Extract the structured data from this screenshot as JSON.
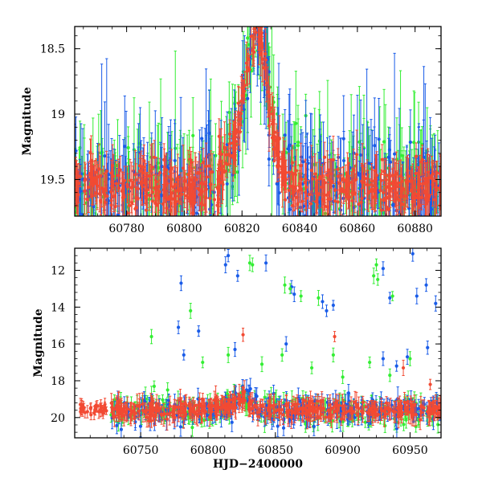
{
  "chart_data": [
    {
      "type": "scatter",
      "panel": "top",
      "title": "",
      "xlabel": "",
      "ylabel": "Magnitude",
      "xlim": [
        60762,
        60889
      ],
      "ylim": [
        19.78,
        18.33
      ],
      "y_inverted": true,
      "xticks": [
        60780,
        60800,
        60820,
        60840,
        60860,
        60880
      ],
      "xtick_labels": [
        "60780",
        "60800",
        "60820",
        "60840",
        "60860",
        "60880"
      ],
      "yticks": [
        18.5,
        19,
        19.5
      ],
      "ytick_labels": [
        "18.5",
        "19",
        "19.5"
      ],
      "series": [
        {
          "name": "green",
          "color": "#33ee33"
        },
        {
          "name": "blue",
          "color": "#1a5ce8"
        },
        {
          "name": "red",
          "color": "#f24a33"
        }
      ],
      "baseline_magnitude": 19.55,
      "peak": {
        "x": 60825,
        "y": 18.62
      }
    },
    {
      "type": "scatter",
      "panel": "bottom",
      "title": "",
      "xlabel": "HJD−2400000",
      "ylabel": "Magnitude",
      "xlim": [
        60701,
        60973
      ],
      "ylim": [
        21.1,
        10.8
      ],
      "y_inverted": true,
      "xticks": [
        60750,
        60800,
        60850,
        60900,
        60950
      ],
      "xtick_labels": [
        "60750",
        "60800",
        "60850",
        "60900",
        "60950"
      ],
      "yticks": [
        12,
        14,
        16,
        18,
        20
      ],
      "ytick_labels": [
        "12",
        "14",
        "16",
        "18",
        "20"
      ],
      "series": [
        {
          "name": "green",
          "color": "#33ee33"
        },
        {
          "name": "blue",
          "color": "#1a5ce8"
        },
        {
          "name": "red",
          "color": "#f24a33"
        }
      ],
      "baseline_magnitude": 19.6,
      "outliers": {
        "blue": [
          [
            60780,
            12.7
          ],
          [
            60778,
            15.1
          ],
          [
            60782,
            16.6
          ],
          [
            60793,
            15.3
          ],
          [
            60813,
            11.7
          ],
          [
            60815,
            11.2
          ],
          [
            60822,
            12.3
          ],
          [
            60820,
            16.3
          ],
          [
            60843,
            11.6
          ],
          [
            60862,
            12.9
          ],
          [
            60864,
            13.3
          ],
          [
            60858,
            16.0
          ],
          [
            60885,
            13.7
          ],
          [
            60888,
            14.2
          ],
          [
            60893,
            13.9
          ],
          [
            60930,
            11.9
          ],
          [
            60935,
            13.5
          ],
          [
            60948,
            16.7
          ],
          [
            60952,
            11.1
          ],
          [
            60955,
            13.4
          ],
          [
            60962,
            12.8
          ],
          [
            60963,
            16.2
          ],
          [
            60969,
            13.8
          ],
          [
            60930,
            16.8
          ],
          [
            60940,
            17.2
          ]
        ],
        "green": [
          [
            60758,
            15.6
          ],
          [
            60787,
            14.2
          ],
          [
            60831,
            11.6
          ],
          [
            60833,
            11.7
          ],
          [
            60857,
            12.8
          ],
          [
            60861,
            13.0
          ],
          [
            60869,
            13.4
          ],
          [
            60882,
            13.5
          ],
          [
            60923,
            12.3
          ],
          [
            60925,
            11.7
          ],
          [
            60926,
            12.5
          ],
          [
            60937,
            13.4
          ],
          [
            60950,
            16.8
          ],
          [
            60796,
            17.0
          ],
          [
            60815,
            16.6
          ],
          [
            60840,
            17.1
          ],
          [
            60855,
            16.6
          ],
          [
            60877,
            17.3
          ],
          [
            60893,
            16.6
          ],
          [
            60920,
            17.0
          ],
          [
            60935,
            17.7
          ],
          [
            60760,
            18.3
          ],
          [
            60770,
            18.5
          ],
          [
            60900,
            17.8
          ]
        ],
        "red": [
          [
            60826,
            15.5
          ],
          [
            60894,
            15.6
          ],
          [
            60945,
            17.3
          ],
          [
            60965,
            18.2
          ]
        ]
      }
    }
  ]
}
